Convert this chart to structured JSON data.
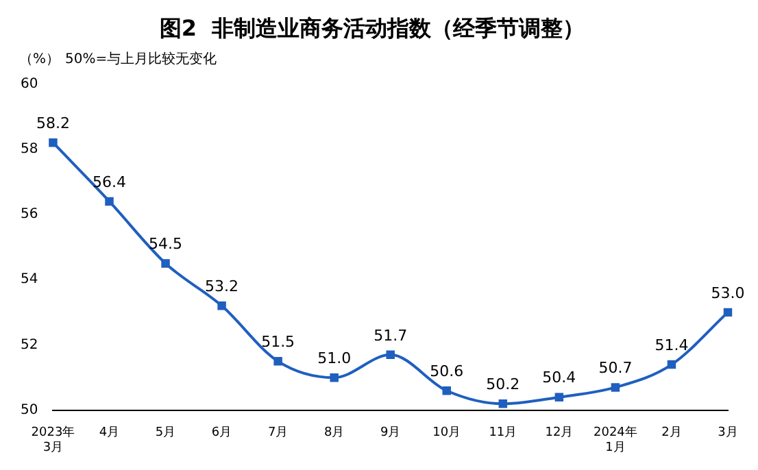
{
  "chart_data": {
    "type": "line",
    "title": "图2  非制造业商务活动指数（经季节调整）",
    "ylabel": "（%）",
    "annotations": [
      "50%=与上月比较无变化"
    ],
    "categories": [
      "2023年\n3月",
      "4月",
      "5月",
      "6月",
      "7月",
      "8月",
      "9月",
      "10月",
      "11月",
      "12月",
      "2024年\n1月",
      "2月",
      "3月"
    ],
    "series": [
      {
        "color": "#1f5fbf",
        "values": [
          58.2,
          56.4,
          54.5,
          53.2,
          51.5,
          51.0,
          51.7,
          50.6,
          50.2,
          50.4,
          50.7,
          51.4,
          53.0
        ],
        "value_labels": [
          "58.2",
          "56.4",
          "54.5",
          "53.2",
          "51.5",
          "51.0",
          "51.7",
          "50.6",
          "50.2",
          "50.4",
          "50.7",
          "51.4",
          "53.0"
        ]
      }
    ],
    "ylim": [
      50,
      60
    ],
    "yticks": [
      50,
      52,
      54,
      56,
      58,
      60
    ],
    "grid": false,
    "legend": false,
    "marker": "square",
    "line_style": "solid"
  }
}
